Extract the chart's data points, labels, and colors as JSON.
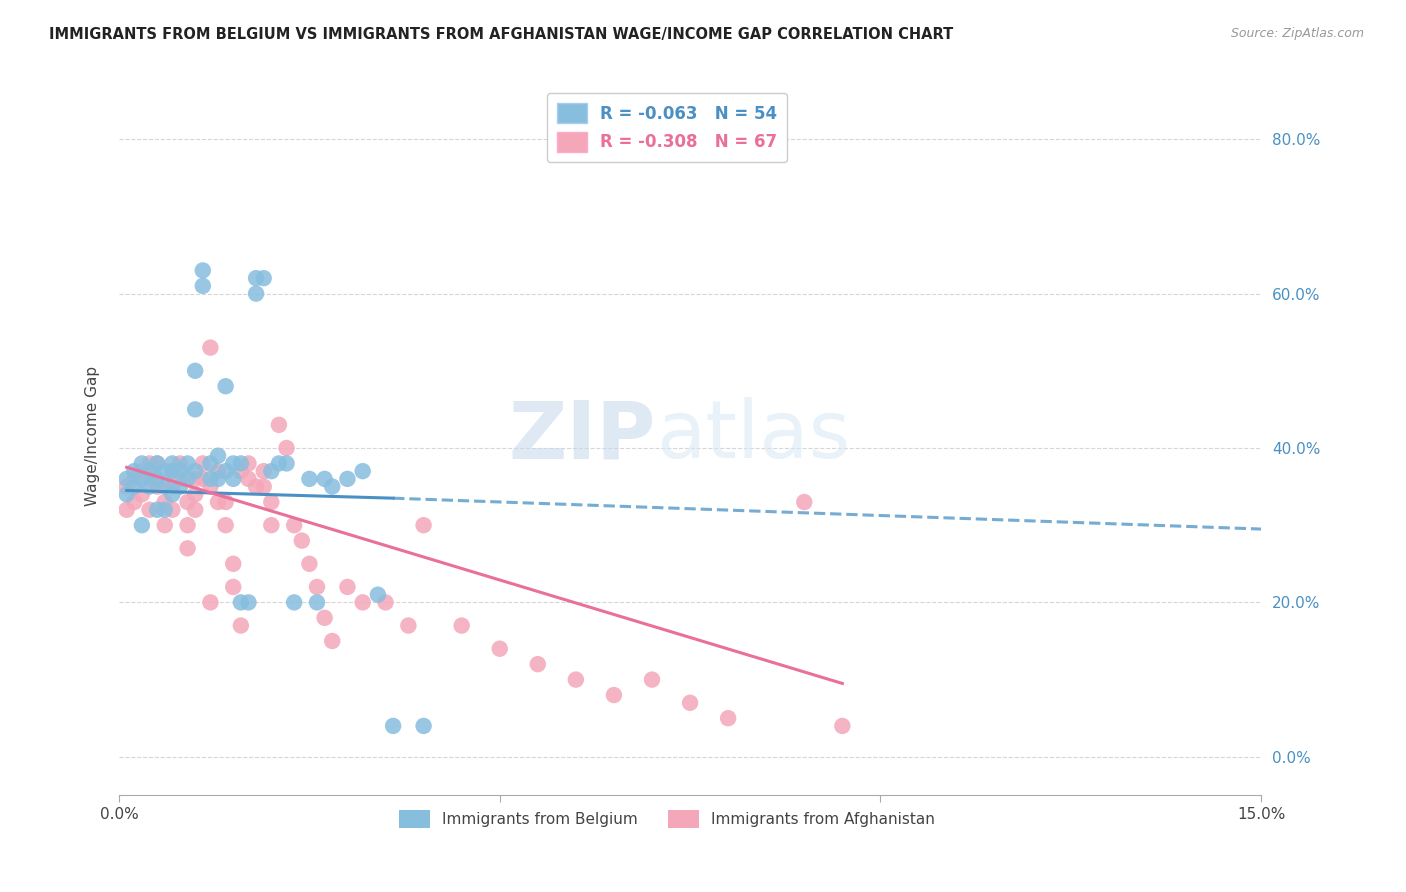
{
  "title": "IMMIGRANTS FROM BELGIUM VS IMMIGRANTS FROM AFGHANISTAN WAGE/INCOME GAP CORRELATION CHART",
  "source": "Source: ZipAtlas.com",
  "ylabel": "Wage/Income Gap",
  "yaxis_labels": [
    "0.0%",
    "20.0%",
    "40.0%",
    "60.0%",
    "80.0%"
  ],
  "yaxis_values": [
    0.0,
    0.2,
    0.4,
    0.6,
    0.8
  ],
  "xmin": 0.0,
  "xmax": 0.15,
  "ymin": -0.05,
  "ymax": 0.88,
  "belgium_color": "#87BEDE",
  "afghanistan_color": "#F4A7B9",
  "belgium_line_color": "#4A90C4",
  "afghanistan_line_color": "#E8709A",
  "belgium_R": -0.063,
  "belgium_N": 54,
  "afghanistan_R": -0.308,
  "afghanistan_N": 67,
  "legend_label_belgium": "Immigrants from Belgium",
  "legend_label_afghanistan": "Immigrants from Afghanistan",
  "watermark_zip": "ZIP",
  "watermark_atlas": "atlas",
  "grid_color": "#CCCCCC",
  "background_color": "#FFFFFF",
  "belgium_x": [
    0.001,
    0.001,
    0.002,
    0.002,
    0.003,
    0.003,
    0.003,
    0.004,
    0.004,
    0.005,
    0.005,
    0.005,
    0.006,
    0.006,
    0.006,
    0.007,
    0.007,
    0.007,
    0.008,
    0.008,
    0.009,
    0.009,
    0.01,
    0.01,
    0.01,
    0.011,
    0.011,
    0.012,
    0.012,
    0.013,
    0.013,
    0.014,
    0.014,
    0.015,
    0.015,
    0.016,
    0.016,
    0.017,
    0.018,
    0.018,
    0.019,
    0.02,
    0.021,
    0.022,
    0.023,
    0.025,
    0.026,
    0.027,
    0.028,
    0.03,
    0.032,
    0.034,
    0.036,
    0.04
  ],
  "belgium_y": [
    0.36,
    0.34,
    0.37,
    0.35,
    0.38,
    0.36,
    0.3,
    0.37,
    0.35,
    0.38,
    0.36,
    0.32,
    0.37,
    0.35,
    0.32,
    0.38,
    0.37,
    0.34,
    0.37,
    0.35,
    0.38,
    0.36,
    0.37,
    0.5,
    0.45,
    0.63,
    0.61,
    0.38,
    0.36,
    0.39,
    0.36,
    0.48,
    0.37,
    0.38,
    0.36,
    0.38,
    0.2,
    0.2,
    0.62,
    0.6,
    0.62,
    0.37,
    0.38,
    0.38,
    0.2,
    0.36,
    0.2,
    0.36,
    0.35,
    0.36,
    0.37,
    0.21,
    0.04,
    0.04
  ],
  "afghanistan_x": [
    0.001,
    0.001,
    0.002,
    0.002,
    0.003,
    0.003,
    0.004,
    0.004,
    0.004,
    0.005,
    0.005,
    0.006,
    0.006,
    0.007,
    0.007,
    0.007,
    0.008,
    0.008,
    0.009,
    0.009,
    0.009,
    0.01,
    0.01,
    0.01,
    0.011,
    0.011,
    0.012,
    0.012,
    0.012,
    0.013,
    0.013,
    0.014,
    0.014,
    0.015,
    0.015,
    0.016,
    0.016,
    0.017,
    0.017,
    0.018,
    0.019,
    0.019,
    0.02,
    0.02,
    0.021,
    0.022,
    0.023,
    0.024,
    0.025,
    0.026,
    0.027,
    0.028,
    0.03,
    0.032,
    0.035,
    0.038,
    0.04,
    0.045,
    0.05,
    0.055,
    0.06,
    0.065,
    0.07,
    0.075,
    0.08,
    0.09,
    0.095
  ],
  "afghanistan_y": [
    0.35,
    0.32,
    0.36,
    0.33,
    0.37,
    0.34,
    0.38,
    0.36,
    0.32,
    0.38,
    0.35,
    0.33,
    0.3,
    0.37,
    0.35,
    0.32,
    0.38,
    0.36,
    0.33,
    0.3,
    0.27,
    0.36,
    0.34,
    0.32,
    0.38,
    0.36,
    0.53,
    0.35,
    0.2,
    0.37,
    0.33,
    0.33,
    0.3,
    0.25,
    0.22,
    0.37,
    0.17,
    0.38,
    0.36,
    0.35,
    0.37,
    0.35,
    0.33,
    0.3,
    0.43,
    0.4,
    0.3,
    0.28,
    0.25,
    0.22,
    0.18,
    0.15,
    0.22,
    0.2,
    0.2,
    0.17,
    0.3,
    0.17,
    0.14,
    0.12,
    0.1,
    0.08,
    0.1,
    0.07,
    0.05,
    0.33,
    0.04
  ],
  "bel_line_xstart": 0.001,
  "bel_line_xsolid_end": 0.036,
  "afg_line_xstart": 0.001,
  "afg_line_xend": 0.095
}
